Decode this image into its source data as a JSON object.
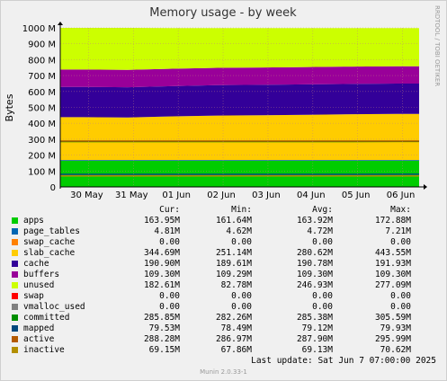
{
  "chart_data": {
    "type": "area",
    "title": "Memory usage - by week",
    "ylabel": "Bytes",
    "watermark": "RRDTOOL / TOBI OETIKER",
    "ylim": [
      0,
      1000
    ],
    "yticks": [
      0,
      100,
      200,
      300,
      400,
      500,
      600,
      700,
      800,
      900,
      1000
    ],
    "ytick_labels": [
      "0",
      "100 M",
      "200 M",
      "300 M",
      "400 M",
      "500 M",
      "600 M",
      "700 M",
      "800 M",
      "900 M",
      "1000 M"
    ],
    "categories": [
      "30 May",
      "31 May",
      "01 Jun",
      "02 Jun",
      "03 Jun",
      "04 Jun",
      "05 Jun",
      "06 Jun"
    ],
    "grid": true,
    "series": [
      {
        "name": "apps",
        "color": "#00cc00",
        "values": [
          164,
          164,
          164,
          164,
          164,
          164,
          164,
          164
        ]
      },
      {
        "name": "page_tables",
        "color": "#0066b3",
        "values": [
          4.7,
          4.7,
          4.7,
          4.7,
          4.7,
          4.7,
          4.7,
          4.8
        ]
      },
      {
        "name": "swap_cache",
        "color": "#ff8000",
        "values": [
          0,
          0,
          0,
          0,
          0,
          0,
          0,
          0
        ]
      },
      {
        "name": "slab_cache",
        "color": "#ffcc00",
        "values": [
          270,
          268,
          275,
          280,
          282,
          285,
          288,
          290
        ]
      },
      {
        "name": "cache",
        "color": "#330099",
        "values": [
          190,
          190,
          190,
          191,
          191,
          191,
          191,
          191
        ]
      },
      {
        "name": "buffers",
        "color": "#990099",
        "values": [
          109,
          109,
          109,
          109,
          109,
          109,
          109,
          109
        ]
      },
      {
        "name": "unused",
        "color": "#ccff00",
        "values": [
          262,
          264,
          256,
          250,
          248,
          245,
          242,
          240
        ]
      },
      {
        "name": "swap",
        "color": "#ff0000",
        "values": [
          0,
          0,
          0,
          0,
          0,
          0,
          0,
          0
        ]
      },
      {
        "name": "vmalloc_used",
        "color": "#808080",
        "values": [
          0,
          0,
          0,
          0,
          0,
          0,
          0,
          0
        ]
      },
      {
        "name": "committed",
        "color": "#008f00",
        "line": true,
        "values": [
          285,
          285,
          285,
          285,
          285,
          285,
          285,
          286
        ]
      },
      {
        "name": "mapped",
        "color": "#00487d",
        "line": true,
        "values": [
          79,
          79,
          79,
          79,
          79,
          79,
          79,
          79.5
        ]
      },
      {
        "name": "active",
        "color": "#b35a00",
        "line": true,
        "values": [
          288,
          288,
          288,
          288,
          288,
          288,
          288,
          288
        ]
      },
      {
        "name": "inactive",
        "color": "#b38f00",
        "line": true,
        "values": [
          69,
          69,
          69,
          69,
          69,
          69,
          69,
          69
        ]
      }
    ]
  },
  "legend": {
    "headers": {
      "cur": "Cur:",
      "min": "Min:",
      "avg": "Avg:",
      "max": "Max:"
    },
    "rows": [
      {
        "name": "apps",
        "color": "#00cc00",
        "cur": "163.95M",
        "min": "161.64M",
        "avg": "163.92M",
        "max": "172.88M"
      },
      {
        "name": "page_tables",
        "color": "#0066b3",
        "cur": "4.81M",
        "min": "4.62M",
        "avg": "4.72M",
        "max": "7.21M"
      },
      {
        "name": "swap_cache",
        "color": "#ff8000",
        "cur": "0.00",
        "min": "0.00",
        "avg": "0.00",
        "max": "0.00"
      },
      {
        "name": "slab_cache",
        "color": "#ffcc00",
        "cur": "344.69M",
        "min": "251.14M",
        "avg": "280.62M",
        "max": "443.55M"
      },
      {
        "name": "cache",
        "color": "#330099",
        "cur": "190.90M",
        "min": "189.61M",
        "avg": "190.78M",
        "max": "191.93M"
      },
      {
        "name": "buffers",
        "color": "#990099",
        "cur": "109.30M",
        "min": "109.29M",
        "avg": "109.30M",
        "max": "109.30M"
      },
      {
        "name": "unused",
        "color": "#ccff00",
        "cur": "182.61M",
        "min": "82.78M",
        "avg": "246.93M",
        "max": "277.09M"
      },
      {
        "name": "swap",
        "color": "#ff0000",
        "cur": "0.00",
        "min": "0.00",
        "avg": "0.00",
        "max": "0.00"
      },
      {
        "name": "vmalloc_used",
        "color": "#808080",
        "cur": "0.00",
        "min": "0.00",
        "avg": "0.00",
        "max": "0.00"
      },
      {
        "name": "committed",
        "color": "#008f00",
        "cur": "285.85M",
        "min": "282.26M",
        "avg": "285.38M",
        "max": "305.59M"
      },
      {
        "name": "mapped",
        "color": "#00487d",
        "cur": "79.53M",
        "min": "78.49M",
        "avg": "79.12M",
        "max": "79.93M"
      },
      {
        "name": "active",
        "color": "#b35a00",
        "cur": "288.28M",
        "min": "286.97M",
        "avg": "287.90M",
        "max": "295.99M"
      },
      {
        "name": "inactive",
        "color": "#b38f00",
        "cur": "69.15M",
        "min": "67.86M",
        "avg": "69.13M",
        "max": "70.62M"
      }
    ]
  },
  "footer": {
    "last_update": "Last update:  Sat Jun  7 07:00:00 2025",
    "munin": "Munin 2.0.33-1"
  }
}
